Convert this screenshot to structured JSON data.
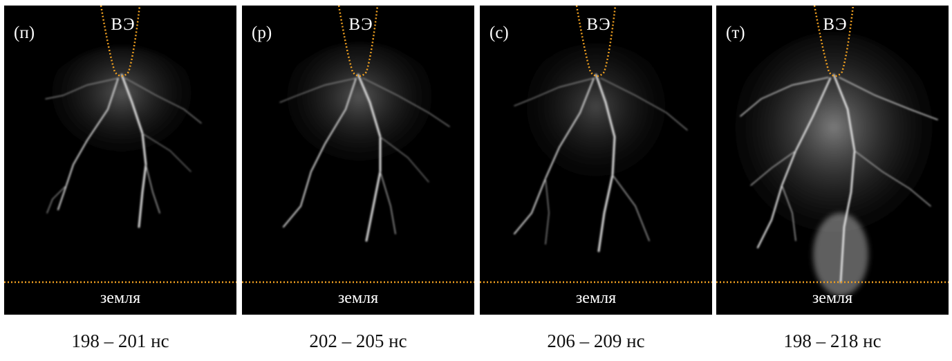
{
  "colors": {
    "background": "#000000",
    "marker": "#f0a020",
    "text": "#ffffff",
    "caption": "#111111"
  },
  "panels": [
    {
      "letter": "(п)",
      "electrode": "ВЭ",
      "ground": "земля",
      "caption": "198 – 201 нс"
    },
    {
      "letter": "(р)",
      "electrode": "ВЭ",
      "ground": "земля",
      "caption": "202 – 205 нс"
    },
    {
      "letter": "(с)",
      "electrode": "ВЭ",
      "ground": "земля",
      "caption": "206 – 209 нс"
    },
    {
      "letter": "(т)",
      "electrode": "ВЭ",
      "ground": "земля",
      "caption": "198 – 218 нс"
    }
  ]
}
